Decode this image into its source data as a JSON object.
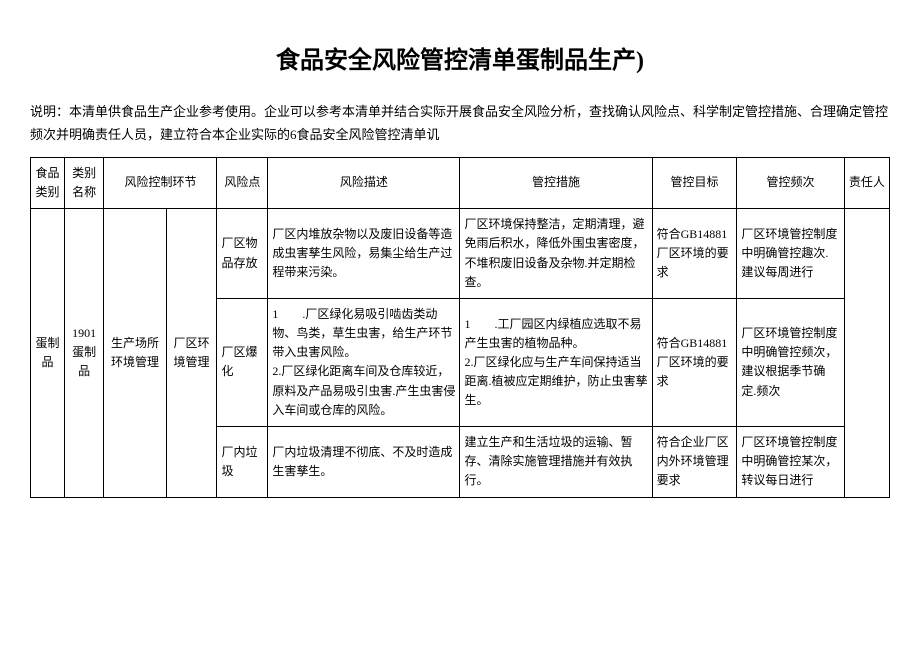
{
  "title": "食品安全风险管控清单蛋制品生产)",
  "intro": "说明：本清单供食品生产企业参考使用。企业可以参考本清单并结合实际开展食品安全风险分析，查找确认风险点、科学制定管控措施、合理确定管控频次并明确责任人员，建立符合本企业实际的6食品安全风险管控清单讥",
  "headers": {
    "h1": "食品类别",
    "h2": "类别名称",
    "h3": "风险控制环节",
    "h4": "风险点",
    "h5": "风险描述",
    "h6": "管控措施",
    "h7": "管控目标",
    "h8": "管控频次",
    "h9": "责任人"
  },
  "category": {
    "foodType": "蛋制品",
    "typeName": "1901蛋制品",
    "controlStage": "生产场所环境管理",
    "subStage": "厂区环境管理"
  },
  "rows": [
    {
      "riskPoint": "厂区物品存放",
      "riskDesc": "厂区内堆放杂物以及废旧设备等造成虫害孳生风险，易集尘给生产过程带来污染。",
      "measures": "厂区环境保持整洁，定期清理，避免雨后积水，降低外围虫害密度，不堆积废旧设备及杂物.并定期检查。",
      "target": "符合GB14881厂区环境的要求",
      "freq": "厂区环境管控制度中明确管控趣次.建议每周进行"
    },
    {
      "riskPoint": "厂区爆化",
      "riskDesc": "1　　.厂区绿化易吸引啮齿类动物、鸟类，草生虫害，给生产环节带入虫害风险。\n2.厂区绿化距离车间及仓库较近，原料及产品易吸引虫害.产生虫害侵入车间或仓库的风险。",
      "measures": "1　　.工厂园区内绿植应选取不易产生虫害的植物品种。\n2.厂区绿化应与生产车间保持适当距离.植被应定期维护，防止虫害孳生。",
      "target": "符合GB14881厂区环境的要求",
      "freq": "厂区环境管控制度中明确管控频次，建议根据季节确定.频次"
    },
    {
      "riskPoint": "厂内垃圾",
      "riskDesc": "厂内垃圾清理不彻底、不及时造成生害孳生。",
      "measures": "建立生产和生活垃圾的运输、暂存、清除实施管理措施并有效执行。",
      "target": "符合企业厂区内外环境管理要求",
      "freq": "厂区环境管控制度中明确管控某次，转议每日进行"
    }
  ],
  "styling": {
    "background_color": "#ffffff",
    "text_color": "#000000",
    "border_color": "#000000",
    "title_fontsize": 24,
    "body_fontsize": 12,
    "intro_fontsize": 13
  }
}
